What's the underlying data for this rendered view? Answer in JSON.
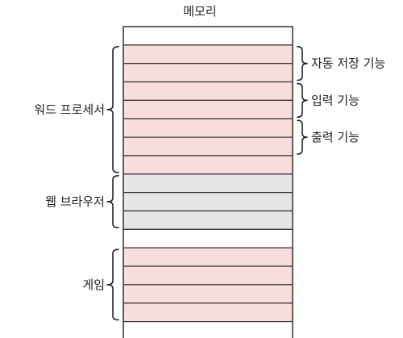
{
  "title": "메모리",
  "colors": {
    "pink": "#f9dcdc",
    "gray": "#e3e6e4",
    "white": "#ffffff",
    "line": "#333333"
  },
  "rows": [
    {
      "fill": "white"
    },
    {
      "fill": "pink"
    },
    {
      "fill": "pink"
    },
    {
      "fill": "pink"
    },
    {
      "fill": "pink"
    },
    {
      "fill": "pink"
    },
    {
      "fill": "pink"
    },
    {
      "fill": "pink"
    },
    {
      "fill": "gray"
    },
    {
      "fill": "gray"
    },
    {
      "fill": "gray"
    },
    {
      "fill": "white"
    },
    {
      "fill": "pink"
    },
    {
      "fill": "pink"
    },
    {
      "fill": "pink"
    },
    {
      "fill": "pink"
    },
    {
      "fill": "white"
    }
  ],
  "left_groups": [
    {
      "label": "워드 프로세서",
      "start_row": 1,
      "end_row": 7
    },
    {
      "label": "웹 브라우저",
      "start_row": 8,
      "end_row": 10
    },
    {
      "label": "게임",
      "start_row": 12,
      "end_row": 15
    }
  ],
  "right_groups": [
    {
      "label": "자동 저장 기능",
      "start_row": 1,
      "end_row": 2
    },
    {
      "label": "입력 기능",
      "start_row": 3,
      "end_row": 4
    },
    {
      "label": "출력 기능",
      "start_row": 5,
      "end_row": 6
    }
  ]
}
